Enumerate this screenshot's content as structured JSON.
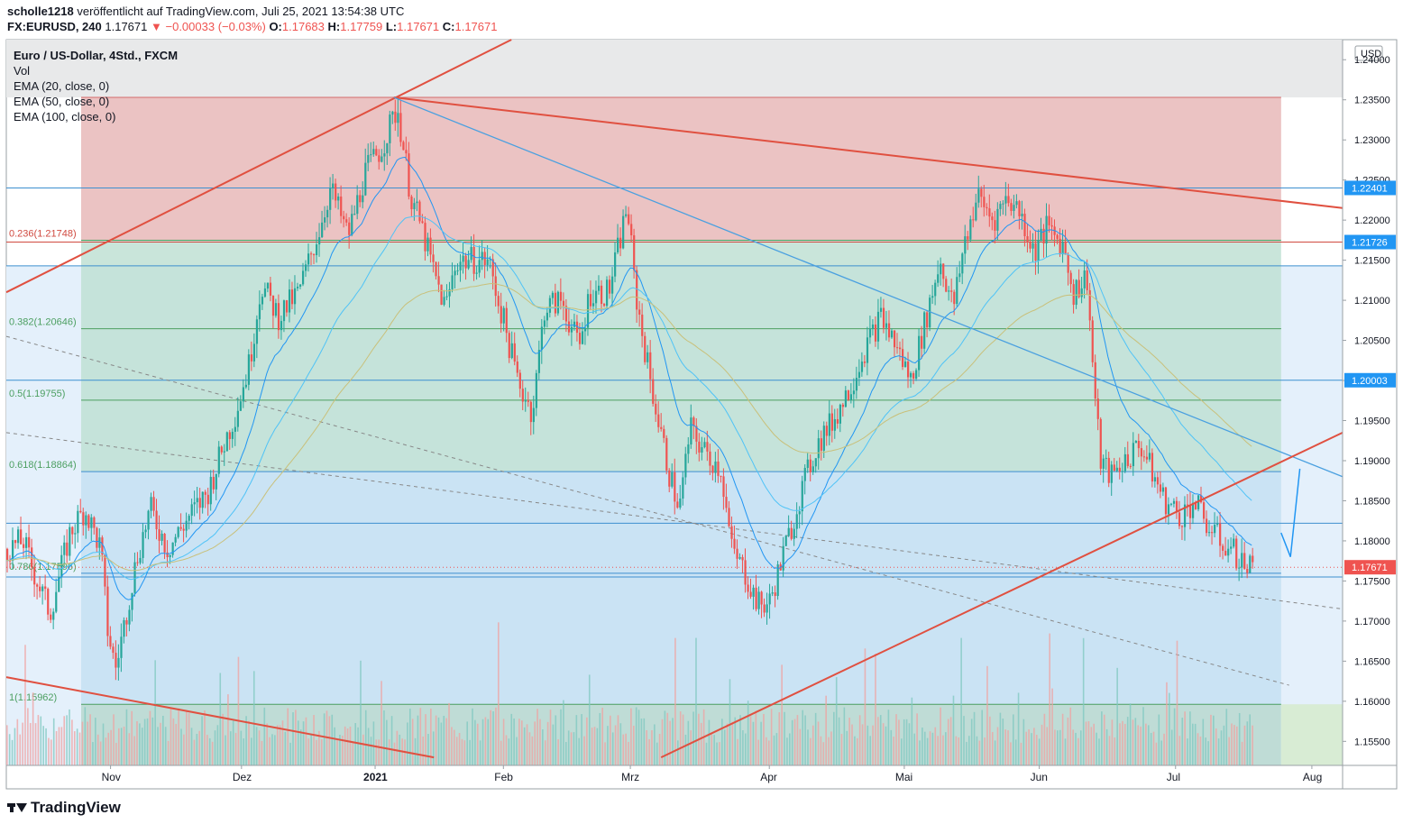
{
  "header": {
    "user": "scholle1218",
    "published": "veröffentlicht auf TradingView.com, Juli 25, 2021 13:54:38 UTC",
    "symbol": "FX:EURUSD, 240",
    "last": "1.17671",
    "change_arrow": "▼",
    "change": "−0.00033 (−0.03%)",
    "o_label": "O:",
    "o_value": "1.17683",
    "h_label": "H:",
    "h_value": "1.17759",
    "l_label": "L:",
    "l_value": "1.17671",
    "c_label": "C:",
    "c_value": "1.17671"
  },
  "legend": {
    "title": "Euro / US-Dollar, 4Std., FXCM",
    "vol": "Vol",
    "ema20": "EMA (20, close, 0)",
    "ema50": "EMA (50, close, 0)",
    "ema100": "EMA (100, close, 0)"
  },
  "brand": {
    "name": "TradingView"
  },
  "colors": {
    "up": "#26a69a",
    "down": "#ef5350",
    "ema20": "#2196f3",
    "ema50": "#4fc3f7",
    "ema100": "#c9c07a",
    "trend_red": "#e05040",
    "trend_blue": "#4aa0e0",
    "fib_red_zone": "#e8b9b9",
    "fib_green_zone": "#bfe0d4",
    "fib_blue_zone": "#c6e1f2"
  },
  "chart_data": {
    "type": "candlestick",
    "currency": "USD",
    "ylim": [
      1.152,
      1.2425
    ],
    "y_ticks": [
      "1.24000",
      "1.23500",
      "1.23000",
      "1.22500",
      "1.22000",
      "1.21500",
      "1.21000",
      "1.20500",
      "1.20000",
      "1.19500",
      "1.19000",
      "1.18500",
      "1.18000",
      "1.17500",
      "1.17000",
      "1.16500",
      "1.16000",
      "1.15500"
    ],
    "x_ticks": [
      {
        "label": "Nov",
        "t": 0.078
      },
      {
        "label": "Dez",
        "t": 0.176
      },
      {
        "label": "2021",
        "t": 0.276,
        "bold": true
      },
      {
        "label": "Feb",
        "t": 0.372
      },
      {
        "label": "Mrz",
        "t": 0.467
      },
      {
        "label": "Apr",
        "t": 0.571
      },
      {
        "label": "Mai",
        "t": 0.672
      },
      {
        "label": "Jun",
        "t": 0.773
      },
      {
        "label": "Jul",
        "t": 0.875
      },
      {
        "label": "Aug",
        "t": 0.977
      }
    ],
    "price_anchors": [
      [
        0.0,
        1.179
      ],
      [
        0.012,
        1.18
      ],
      [
        0.02,
        1.176
      ],
      [
        0.032,
        1.171
      ],
      [
        0.047,
        1.181
      ],
      [
        0.058,
        1.184
      ],
      [
        0.07,
        1.179
      ],
      [
        0.075,
        1.169
      ],
      [
        0.081,
        1.164
      ],
      [
        0.088,
        1.17
      ],
      [
        0.097,
        1.178
      ],
      [
        0.107,
        1.184
      ],
      [
        0.12,
        1.179
      ],
      [
        0.136,
        1.183
      ],
      [
        0.15,
        1.186
      ],
      [
        0.162,
        1.192
      ],
      [
        0.171,
        1.196
      ],
      [
        0.181,
        1.202
      ],
      [
        0.19,
        1.212
      ],
      [
        0.203,
        1.208
      ],
      [
        0.218,
        1.211
      ],
      [
        0.232,
        1.218
      ],
      [
        0.242,
        1.224
      ],
      [
        0.255,
        1.218
      ],
      [
        0.268,
        1.226
      ],
      [
        0.28,
        1.229
      ],
      [
        0.292,
        1.234
      ],
      [
        0.302,
        1.223
      ],
      [
        0.31,
        1.219
      ],
      [
        0.32,
        1.213
      ],
      [
        0.328,
        1.209
      ],
      [
        0.336,
        1.215
      ],
      [
        0.348,
        1.215
      ],
      [
        0.36,
        1.215
      ],
      [
        0.372,
        1.207
      ],
      [
        0.382,
        1.2
      ],
      [
        0.393,
        1.196
      ],
      [
        0.402,
        1.209
      ],
      [
        0.415,
        1.21
      ],
      [
        0.428,
        1.204
      ],
      [
        0.436,
        1.211
      ],
      [
        0.45,
        1.211
      ],
      [
        0.458,
        1.217
      ],
      [
        0.464,
        1.222
      ],
      [
        0.47,
        1.211
      ],
      [
        0.478,
        1.203
      ],
      [
        0.487,
        1.195
      ],
      [
        0.496,
        1.188
      ],
      [
        0.503,
        1.184
      ],
      [
        0.511,
        1.194
      ],
      [
        0.522,
        1.191
      ],
      [
        0.534,
        1.189
      ],
      [
        0.542,
        1.179
      ],
      [
        0.552,
        1.176
      ],
      [
        0.562,
        1.172
      ],
      [
        0.57,
        1.172
      ],
      [
        0.582,
        1.179
      ],
      [
        0.594,
        1.186
      ],
      [
        0.606,
        1.192
      ],
      [
        0.618,
        1.195
      ],
      [
        0.63,
        1.199
      ],
      [
        0.642,
        1.204
      ],
      [
        0.654,
        1.208
      ],
      [
        0.666,
        1.204
      ],
      [
        0.676,
        1.2
      ],
      [
        0.688,
        1.208
      ],
      [
        0.698,
        1.215
      ],
      [
        0.708,
        1.209
      ],
      [
        0.716,
        1.217
      ],
      [
        0.726,
        1.223
      ],
      [
        0.738,
        1.22
      ],
      [
        0.748,
        1.223
      ],
      [
        0.758,
        1.221
      ],
      [
        0.768,
        1.216
      ],
      [
        0.778,
        1.219
      ],
      [
        0.79,
        1.217
      ],
      [
        0.798,
        1.211
      ],
      [
        0.808,
        1.213
      ],
      [
        0.813,
        1.2
      ],
      [
        0.818,
        1.19
      ],
      [
        0.826,
        1.188
      ],
      [
        0.836,
        1.19
      ],
      [
        0.848,
        1.192
      ],
      [
        0.858,
        1.188
      ],
      [
        0.866,
        1.185
      ],
      [
        0.878,
        1.183
      ],
      [
        0.888,
        1.185
      ],
      [
        0.898,
        1.182
      ],
      [
        0.908,
        1.18
      ],
      [
        0.916,
        1.179
      ],
      [
        0.926,
        1.177
      ],
      [
        0.934,
        1.1767
      ]
    ],
    "fib_levels": [
      {
        "label": "",
        "value": 1.2353,
        "zone": "red"
      },
      {
        "label": "0.236(1.21748)",
        "value": 1.21748,
        "zone": "green"
      },
      {
        "label": "0.382(1.20646)",
        "value": 1.20646,
        "zone": "green"
      },
      {
        "label": "0.5(1.19755)",
        "value": 1.19755,
        "zone": "green"
      },
      {
        "label": "0.618(1.18864)",
        "value": 1.18864,
        "zone": "blue"
      },
      {
        "label": "0.786(1.17596)",
        "value": 1.17596,
        "zone": "blue"
      },
      {
        "label": "1(1.15962)",
        "value": 1.15962,
        "zone": "green"
      }
    ],
    "horizontal_levels": [
      {
        "value": 1.22401,
        "label": "1.22401"
      },
      {
        "value": 1.21726,
        "label": "1.21726"
      },
      {
        "value": 1.2143,
        "label": ""
      },
      {
        "value": 1.20003,
        "label": "1.20003"
      },
      {
        "value": 1.1822,
        "label": ""
      },
      {
        "value": 1.1755,
        "label": ""
      }
    ],
    "last_price": {
      "value": 1.17671,
      "label": "1.17671"
    },
    "trend_lines": [
      {
        "color": "red",
        "from": [
          0.0,
          1.211
        ],
        "to": [
          0.378,
          1.2425
        ]
      },
      {
        "color": "red",
        "from": [
          0.29,
          1.2353
        ],
        "to": [
          1.0,
          1.2215
        ]
      },
      {
        "color": "blue",
        "from": [
          0.29,
          1.2353
        ],
        "to": [
          1.0,
          1.188
        ]
      },
      {
        "color": "red",
        "from": [
          0.49,
          1.153
        ],
        "to": [
          1.0,
          1.1935
        ]
      },
      {
        "color": "red",
        "from": [
          0.0,
          1.163
        ],
        "to": [
          0.32,
          1.153
        ]
      }
    ],
    "forecast_path": [
      [
        0.954,
        1.181
      ],
      [
        0.961,
        1.178
      ],
      [
        0.968,
        1.189
      ]
    ]
  }
}
